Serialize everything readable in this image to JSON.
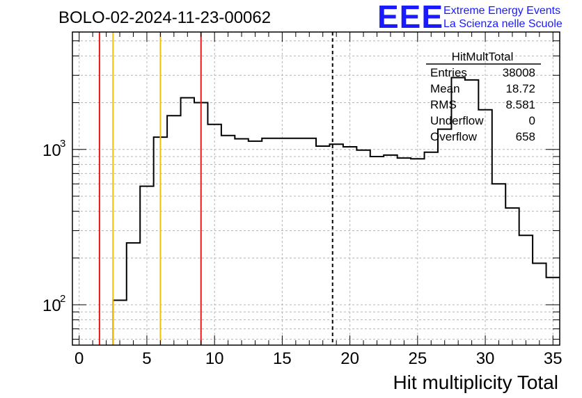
{
  "header": {
    "run_title": "BOLO-02-2024-11-23-00062",
    "logo_text": "EEE",
    "logo_line1": "Extreme Energy Events",
    "logo_line2": "La Scienza nelle Scuole"
  },
  "stats": {
    "name": "HitMultTotal",
    "rows": [
      {
        "label": "Entries",
        "value": "38008"
      },
      {
        "label": "Mean",
        "value": "18.72"
      },
      {
        "label": "RMS",
        "value": "8.581"
      },
      {
        "label": "Underflow",
        "value": "0"
      },
      {
        "label": "Overflow",
        "value": "658"
      }
    ]
  },
  "colors": {
    "histogram": "#000000",
    "red_line": "#e8161b",
    "yellow_line": "#f2c200",
    "grid": "#b4b4b4",
    "logo": "#1a1aff"
  },
  "chart_data": {
    "type": "histogram",
    "xlabel": "Hit multiplicity Total",
    "ylabel": "",
    "xlim": [
      -0.5,
      35.5
    ],
    "ylim": [
      55,
      5700
    ],
    "yscale": "log",
    "grid": true,
    "xticks": [
      "0",
      "5",
      "10",
      "15",
      "20",
      "25",
      "30",
      "35"
    ],
    "yticks": [
      {
        "exp": "2",
        "value": 100
      },
      {
        "exp": "3",
        "value": 1000
      }
    ],
    "ytick_base": "10",
    "bin_edges": [
      2.5,
      3.5,
      4.5,
      5.5,
      6.5,
      7.5,
      8.5,
      9.5,
      10.5,
      11.5,
      12.5,
      13.5,
      14.5,
      15.5,
      16.5,
      17.5,
      18.5,
      19.5,
      20.5,
      21.5,
      22.5,
      23.5,
      24.5,
      25.5,
      26.5,
      27.5,
      28.5,
      29.5,
      30.5,
      31.5,
      32.5,
      33.5,
      34.5,
      35.5
    ],
    "values": [
      107,
      250,
      580,
      1200,
      1650,
      2150,
      2000,
      1450,
      1230,
      1170,
      1130,
      1180,
      1180,
      1180,
      1180,
      1050,
      1080,
      1040,
      990,
      900,
      920,
      880,
      870,
      960,
      1350,
      2900,
      2800,
      1800,
      600,
      420,
      280,
      185,
      150
    ],
    "vertical_lines": [
      {
        "x": 1.5,
        "color": "red",
        "style": "solid"
      },
      {
        "x": 2.5,
        "color": "yellow",
        "style": "solid"
      },
      {
        "x": 6.0,
        "color": "yellow",
        "style": "solid"
      },
      {
        "x": 9.0,
        "color": "red",
        "style": "solid"
      },
      {
        "x": 18.72,
        "color": "black",
        "style": "dashed"
      }
    ]
  }
}
